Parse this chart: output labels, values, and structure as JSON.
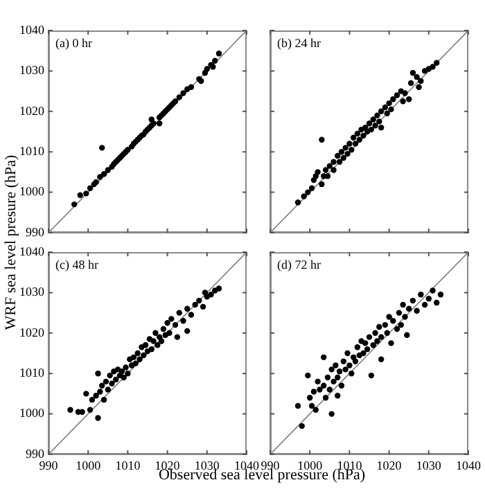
{
  "chart_data": [
    {
      "type": "scatter",
      "ylabel": "WRF sea level presure (hPa)",
      "annotations": [
        "(a) 0 hr"
      ],
      "xlim": [
        990,
        1040
      ],
      "ylim": [
        990,
        1040
      ],
      "xticks": [
        990,
        1000,
        1010,
        1020,
        1030,
        1040
      ],
      "yticks": [
        990,
        1000,
        1010,
        1020,
        1030,
        1040
      ],
      "tick_labels": "y",
      "grid": false,
      "marker": "circle",
      "series": [
        {
          "type": "scatter",
          "color": "#000000",
          "x": [
            996.5,
            998,
            999.5,
            1000.5,
            1001.5,
            1002,
            1002.5,
            1003,
            1003.5,
            1004,
            1005,
            1006,
            1006.5,
            1007,
            1007.5,
            1008,
            1008.5,
            1009,
            1009.5,
            1010,
            1010.5,
            1011,
            1011.5,
            1012,
            1012.5,
            1013,
            1013.5,
            1014,
            1014.5,
            1015,
            1015.5,
            1016,
            1016.5,
            1017,
            1017.5,
            1018,
            1018.5,
            1019,
            1019.5,
            1020,
            1020.5,
            1021,
            1021.5,
            1022,
            1023,
            1024,
            1025,
            1026,
            1028,
            1028.5,
            1029.5,
            1030,
            1031,
            1031.5,
            1032,
            1033,
            1016,
            1018
          ],
          "values": [
            997,
            999.3,
            999.7,
            1001,
            1002,
            1002.5,
            null,
            1003.8,
            1011,
            1004.5,
            1005.5,
            1006.3,
            1007,
            1007.5,
            1008,
            1008.5,
            1009,
            1009.5,
            1010,
            1010.5,
            null,
            1011.3,
            1012,
            1012.5,
            1013,
            1013.5,
            1014,
            1014.3,
            1015,
            1015.5,
            1016,
            1016.5,
            1017,
            null,
            null,
            1018.5,
            1019,
            1019.5,
            1020,
            1020.5,
            1021,
            1021.5,
            1022,
            1022.5,
            1023.5,
            1024.5,
            1025.5,
            1026,
            1028,
            1027.5,
            1029.5,
            1030.5,
            1031.5,
            1031,
            1032.5,
            1034.3,
            1018,
            1017
          ]
        },
        {
          "type": "line",
          "marker": "none",
          "color": "#808080",
          "x": [
            990,
            1040
          ],
          "values": [
            990,
            1040
          ]
        }
      ]
    },
    {
      "type": "scatter",
      "annotations": [
        "(b) 24 hr"
      ],
      "xlim": [
        990,
        1040
      ],
      "ylim": [
        990,
        1040
      ],
      "xticks": [
        990,
        1000,
        1010,
        1020,
        1030,
        1040
      ],
      "yticks": [
        990,
        1000,
        1010,
        1020,
        1030,
        1040
      ],
      "tick_labels": false,
      "grid": false,
      "marker": "circle",
      "series": [
        {
          "type": "scatter",
          "color": "#000000",
          "x": [
            1003,
            997,
            998.5,
            999.5,
            1000.5,
            1001,
            1001.5,
            1002,
            1003,
            1003.5,
            1004,
            1004.5,
            1005,
            1006,
            1006,
            1007,
            1007.5,
            1008,
            1008.5,
            1009,
            1009.5,
            1010,
            1010.5,
            1011,
            1011.5,
            1012,
            1012.5,
            1013,
            1013.5,
            1014,
            1014.5,
            1015,
            1015.5,
            1016,
            1016.5,
            1017,
            1017.5,
            1018,
            1018,
            1019,
            1019.5,
            1020,
            1020.5,
            1021,
            1022,
            1023,
            1023.5,
            1024,
            1025,
            1025.5,
            1026,
            1027,
            1027.5,
            1028,
            1029,
            1030,
            1031,
            1032
          ],
          "values": [
            1013,
            997.5,
            999,
            1000,
            1001,
            1003,
            1004,
            1005,
            1002,
            1004,
            1005.5,
            1004,
            1006.5,
            1005.5,
            1007.5,
            1009,
            1007.5,
            1010,
            1008.5,
            1011,
            1009.5,
            1012,
            1010.5,
            1013.5,
            1012,
            1014.5,
            1013,
            1015.5,
            1014,
            1016,
            1015,
            1017,
            1015.5,
            1018,
            1016.5,
            1019,
            1017.5,
            1020,
            1016,
            1021,
            1019.5,
            1022,
            1020.5,
            1023,
            1024,
            1025,
            1022.5,
            1024.5,
            1023,
            1027,
            1029.5,
            1028.5,
            1026,
            1027.5,
            1030,
            1030.5,
            1031,
            1032
          ]
        },
        {
          "type": "line",
          "marker": "none",
          "color": "#808080",
          "x": [
            990,
            1040
          ],
          "values": [
            990,
            1040
          ]
        }
      ]
    },
    {
      "type": "scatter",
      "xlabel": "Observed sea level pressure (hPa)",
      "annotations": [
        "(c) 48 hr"
      ],
      "xlim": [
        990,
        1040
      ],
      "ylim": [
        990,
        1040
      ],
      "xticks": [
        990,
        1000,
        1010,
        1020,
        1030,
        1040
      ],
      "yticks": [
        990,
        1000,
        1010,
        1020,
        1030,
        1040
      ],
      "grid": false,
      "marker": "circle",
      "series": [
        {
          "type": "scatter",
          "color": "#000000",
          "x": [
            995.5,
            997.5,
            998.5,
            999.5,
            1000.5,
            1001,
            1002,
            1002.5,
            1002.5,
            1003,
            1003.5,
            1004,
            1004.5,
            1005,
            1005.5,
            1006,
            1006.5,
            1007,
            1007.5,
            1008,
            1008.5,
            1009,
            1009.5,
            1010,
            1010.5,
            1011,
            1011.5,
            1012,
            1012.5,
            1013,
            1013.5,
            1014,
            1014.5,
            1015,
            1015.5,
            1016,
            1016.5,
            1017,
            1017.5,
            1018,
            1018.5,
            1019,
            1019.5,
            1020,
            1020.5,
            1021,
            1022,
            1022.5,
            1023,
            1024,
            1025,
            1025,
            1026,
            1027,
            1028,
            1029,
            1030,
            1031,
            1032,
            1033,
            1029.5
          ],
          "values": [
            1001,
            1000.5,
            1000.5,
            1005,
            1001,
            1003.5,
            1004.5,
            999,
            1010,
            1005.5,
            1007,
            1003.5,
            1008,
            1006,
            1009.5,
            1007.5,
            1010.5,
            1008.5,
            1011,
            1009.5,
            1010.5,
            1009,
            1011.5,
            1010,
            1013.5,
            1012,
            1014,
            1012.5,
            1015,
            1013.5,
            1016.5,
            1014.5,
            1017,
            1015.5,
            1018.5,
            1016,
            1018,
            1020,
            1017,
            1019,
            1018,
            1021,
            1019.5,
            1022.5,
            1020,
            1023.5,
            1022,
            1019,
            1025,
            1023,
            1026,
            1020.5,
            1024.5,
            1027,
            1028,
            1026.5,
            1029,
            1029.5,
            1030.5,
            1031,
            1030
          ]
        },
        {
          "type": "line",
          "marker": "none",
          "color": "#808080",
          "x": [
            990,
            1040
          ],
          "values": [
            990,
            1040
          ]
        }
      ]
    },
    {
      "type": "scatter",
      "annotations": [
        "(d) 72 hr"
      ],
      "xlim": [
        990,
        1040
      ],
      "ylim": [
        990,
        1040
      ],
      "xticks": [
        990,
        1000,
        1010,
        1020,
        1030,
        1040
      ],
      "yticks": [
        990,
        1000,
        1010,
        1020,
        1030,
        1040
      ],
      "tick_labels": "x",
      "grid": false,
      "marker": "circle",
      "series": [
        {
          "type": "scatter",
          "color": "#000000",
          "x": [
            997,
            998,
            999.5,
            1000,
            1000.5,
            1001,
            1001.5,
            1002,
            1002.5,
            1003.5,
            1003.5,
            1004,
            1004.5,
            1005,
            1005.5,
            1005.5,
            1006,
            1006.5,
            1007,
            1007,
            1007.5,
            1008,
            1008.5,
            1009,
            1009.5,
            1010,
            1010.5,
            1011,
            1011.5,
            1012,
            1012.5,
            1013,
            1013.5,
            1014,
            1014.5,
            1015,
            1015.5,
            1016,
            1016.5,
            1017,
            1017.5,
            1018,
            1018,
            1019,
            1019.5,
            1020,
            1020.5,
            1021,
            1022,
            1022.5,
            1023,
            1023.5,
            1024,
            1024.5,
            1025,
            1026,
            1027,
            1028,
            1029,
            1030,
            1031,
            1032,
            1033
          ],
          "values": [
            1002,
            997,
            1009.5,
            1004,
            1002,
            1005.5,
            1001,
            1008,
            1006,
            1014,
            1007,
            1004,
            1009,
            1006,
            1000,
            1011,
            1008,
            1012,
            1009,
            1004.5,
            1010.5,
            1007,
            1013,
            1011,
            1015,
            1012,
            1010,
            1014,
            1013,
            1016.5,
            1014.5,
            1018,
            1015,
            1017.5,
            1016,
            1019,
            1009.5,
            1017,
            1020,
            1018,
            1021.5,
            1013.5,
            1019,
            1022,
            1020,
            1024,
            1017.5,
            1023,
            1021,
            1025,
            1022,
            1027,
            1024,
            1019.5,
            1026,
            1028,
            1025.5,
            1029.5,
            1027,
            1028.5,
            1030.5,
            1027.5,
            1029.5
          ]
        },
        {
          "type": "line",
          "marker": "none",
          "color": "#808080",
          "x": [
            990,
            1040
          ],
          "values": [
            990,
            1040
          ]
        }
      ]
    }
  ]
}
